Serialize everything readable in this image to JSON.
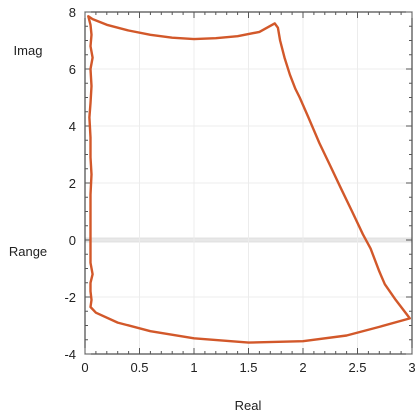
{
  "chart_data": {
    "type": "line",
    "xlabel": "Real",
    "ylabel": "Imag",
    "ylabel2": "Range",
    "xlim": [
      0,
      3
    ],
    "ylim": [
      -4,
      8
    ],
    "xticks": [
      0,
      0.5,
      1,
      1.5,
      2,
      2.5,
      3
    ],
    "yticks": [
      -4,
      -2,
      0,
      2,
      4,
      6,
      8
    ],
    "xtick_labels": [
      "0",
      "0.5",
      "1",
      "1.5",
      "2",
      "2.5",
      "3"
    ],
    "ytick_labels": [
      "-4",
      "-2",
      "0",
      "2",
      "4",
      "6",
      "8"
    ],
    "grid": true,
    "zero_band": {
      "y": 0,
      "color": "#e3e3e3"
    },
    "series": [
      {
        "color": "#d2582a",
        "points": [
          [
            0.03,
            7.85
          ],
          [
            0.05,
            7.55
          ],
          [
            0.06,
            7.2
          ],
          [
            0.05,
            6.8
          ],
          [
            0.07,
            6.4
          ],
          [
            0.05,
            6.0
          ],
          [
            0.06,
            5.4
          ],
          [
            0.05,
            4.8
          ],
          [
            0.04,
            4.3
          ],
          [
            0.05,
            3.6
          ],
          [
            0.05,
            2.9
          ],
          [
            0.06,
            2.3
          ],
          [
            0.05,
            1.6
          ],
          [
            0.05,
            0.9
          ],
          [
            0.05,
            0.3
          ],
          [
            0.05,
            -0.3
          ],
          [
            0.05,
            -0.8
          ],
          [
            0.07,
            -1.2
          ],
          [
            0.05,
            -1.5
          ],
          [
            0.05,
            -1.8
          ],
          [
            0.06,
            -2.1
          ],
          [
            0.05,
            -2.35
          ],
          [
            0.1,
            -2.55
          ],
          [
            0.3,
            -2.9
          ],
          [
            0.6,
            -3.2
          ],
          [
            1.0,
            -3.45
          ],
          [
            1.5,
            -3.6
          ],
          [
            2.0,
            -3.55
          ],
          [
            2.4,
            -3.35
          ],
          [
            2.7,
            -3.05
          ],
          [
            2.98,
            -2.75
          ],
          [
            2.95,
            -2.6
          ],
          [
            2.85,
            -2.1
          ],
          [
            2.75,
            -1.55
          ],
          [
            2.7,
            -1.1
          ],
          [
            2.62,
            -0.3
          ],
          [
            2.55,
            0.2
          ],
          [
            2.45,
            1.0
          ],
          [
            2.35,
            1.8
          ],
          [
            2.25,
            2.6
          ],
          [
            2.15,
            3.4
          ],
          [
            2.05,
            4.3
          ],
          [
            1.97,
            5.0
          ],
          [
            1.93,
            5.3
          ],
          [
            1.88,
            5.8
          ],
          [
            1.83,
            6.4
          ],
          [
            1.79,
            7.0
          ],
          [
            1.77,
            7.45
          ],
          [
            1.74,
            7.6
          ],
          [
            1.6,
            7.3
          ],
          [
            1.4,
            7.15
          ],
          [
            1.2,
            7.08
          ],
          [
            1.0,
            7.05
          ],
          [
            0.8,
            7.1
          ],
          [
            0.6,
            7.2
          ],
          [
            0.4,
            7.35
          ],
          [
            0.2,
            7.55
          ],
          [
            0.07,
            7.75
          ],
          [
            0.03,
            7.85
          ]
        ]
      }
    ]
  }
}
